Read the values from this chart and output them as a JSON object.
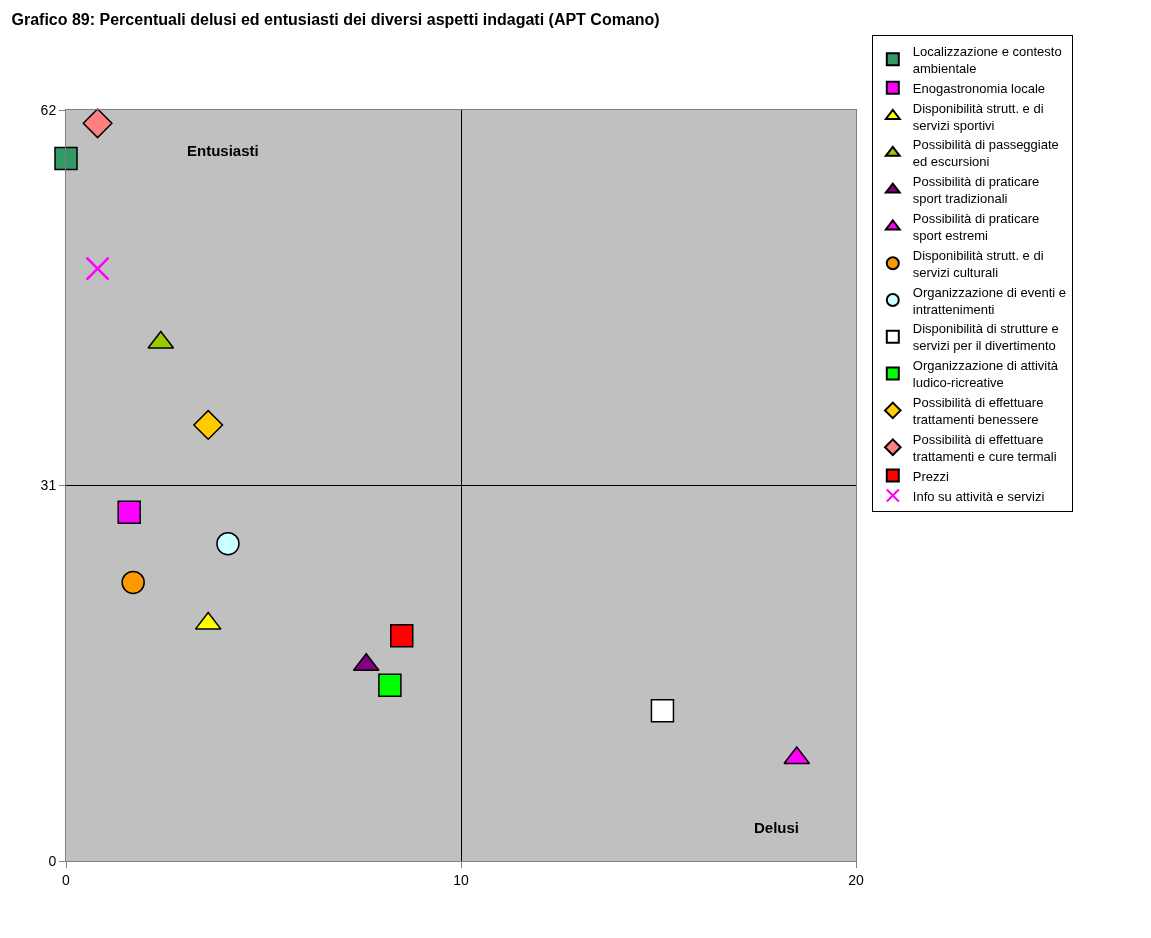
{
  "chart_data": {
    "type": "scatter",
    "title": "Grafico 89: Percentuali delusi ed entusiasti dei diversi aspetti indagati (APT Comano)",
    "annotations": [
      "Entusiasti",
      "Delusi"
    ],
    "xlim": [
      0,
      20
    ],
    "xticks": [
      0,
      10,
      20
    ],
    "ylim": [
      0,
      62
    ],
    "yticks": [
      0,
      31,
      62
    ],
    "grid": true,
    "legend": "right",
    "series": [
      {
        "name": "Localizzazione e contesto ambientale",
        "color": "#339966",
        "marker": "square",
        "x": [
          0.0
        ],
        "values": [
          58.0
        ]
      },
      {
        "name": "Enogastronomia locale",
        "color": "#ff00ff",
        "marker": "square",
        "x": [
          1.6
        ],
        "values": [
          28.8
        ]
      },
      {
        "name": "Disponibilità strutt. e di servizi sportivi",
        "color": "#ffff00",
        "marker": "triangle",
        "x": [
          3.6
        ],
        "values": [
          19.6
        ]
      },
      {
        "name": "Possibilità di passeggiate ed escursioni",
        "color": "#99cc00",
        "marker": "triangle",
        "x": [
          2.4
        ],
        "values": [
          42.8
        ]
      },
      {
        "name": "Possibilità di praticare sport tradizionali",
        "color": "#800080",
        "marker": "triangle",
        "x": [
          7.6
        ],
        "values": [
          16.2
        ]
      },
      {
        "name": "Possibilità di praticare sport estremi",
        "color": "#ff00ff",
        "marker": "triangle",
        "x": [
          18.5
        ],
        "values": [
          8.5
        ]
      },
      {
        "name": "Disponibilità strutt. e di servizi culturali",
        "color": "#ff9900",
        "marker": "circle",
        "x": [
          1.7
        ],
        "values": [
          23.0
        ]
      },
      {
        "name": "Organizzazione di eventi e intrattenimenti",
        "color": "#ccffff",
        "marker": "circle",
        "x": [
          4.1
        ],
        "values": [
          26.2
        ]
      },
      {
        "name": "Disponibilità di strutture e servizi per il divertimento",
        "color": "#ffffff",
        "marker": "square",
        "x": [
          15.1
        ],
        "values": [
          12.4
        ]
      },
      {
        "name": "Organizzazione di attività ludico-ricreative",
        "color": "#00ff00",
        "marker": "square",
        "x": [
          8.2
        ],
        "values": [
          14.5
        ]
      },
      {
        "name": "Possibilità di effettuare trattamenti benessere",
        "color": "#ffcc00",
        "marker": "diamond",
        "x": [
          3.6
        ],
        "values": [
          36.0
        ]
      },
      {
        "name": "Possibilità di effettuare trattamenti e cure termali",
        "color": "#ff8080",
        "marker": "diamond",
        "x": [
          0.8
        ],
        "values": [
          60.9
        ]
      },
      {
        "name": "Prezzi",
        "color": "#ff0000",
        "marker": "square",
        "x": [
          8.5
        ],
        "values": [
          18.6
        ]
      },
      {
        "name": "Info su attività e servizi",
        "color": "#ff00ff",
        "marker": "cross",
        "x": [
          0.8
        ],
        "values": [
          48.9
        ]
      }
    ]
  }
}
